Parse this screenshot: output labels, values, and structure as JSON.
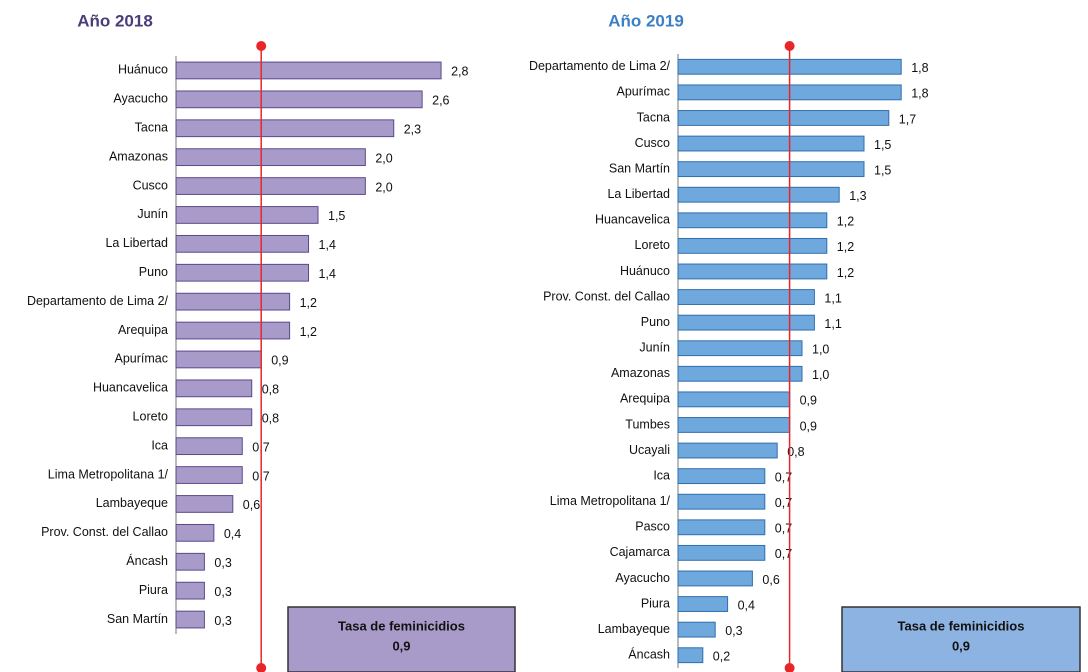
{
  "chart_data": [
    {
      "type": "hbar",
      "title": "Año 2018",
      "color": "#a99bc9",
      "edge": "#5b4a8b",
      "categories": [
        "Huánuco",
        "Ayacucho",
        "Tacna",
        "Amazonas",
        "Cusco",
        "Junín",
        "La Libertad",
        "Puno",
        "Departamento de Lima 2/",
        "Arequipa",
        "Apurímac",
        "Huancavelica",
        "Loreto",
        "Ica",
        "Lima Metropolitana 1/",
        "Lambayeque",
        "Prov. Const. del Callao",
        "Áncash",
        "Piura",
        "San Martín"
      ],
      "values": [
        2.8,
        2.6,
        2.3,
        2.0,
        2.0,
        1.5,
        1.4,
        1.4,
        1.2,
        1.2,
        0.9,
        0.8,
        0.8,
        0.7,
        0.7,
        0.6,
        0.4,
        0.3,
        0.3,
        0.3
      ],
      "value_labels": [
        "2,8",
        "2,6",
        "2,3",
        "2,0",
        "2,0",
        "1,5",
        "1,4",
        "1,4",
        "1,2",
        "1,2",
        "0,9",
        "0,8",
        "0,8",
        "0,7",
        "0,7",
        "0,6",
        "0,4",
        "0,3",
        "0,3",
        "0,3"
      ],
      "xlim": [
        0,
        3
      ],
      "reference_line": {
        "value": 0.9,
        "label": "Tasa de feminicidios",
        "value_label": "0,9",
        "color": "#e8262a",
        "box_color": "#a99bc9"
      }
    },
    {
      "type": "hbar",
      "title": "Año 2019",
      "color": "#6fa8dc",
      "edge": "#2f6fb0",
      "categories": [
        "Departamento de Lima 2/",
        "Apurímac",
        "Tacna",
        "Cusco",
        "San Martín",
        "La Libertad",
        "Huancavelica",
        "Loreto",
        "Huánuco",
        "Prov. Const. del Callao",
        "Puno",
        "Junín",
        "Amazonas",
        "Arequipa",
        "Tumbes",
        "Ucayali",
        "Ica",
        "Lima Metropolitana 1/",
        "Pasco",
        "Cajamarca",
        "Ayacucho",
        "Piura",
        "Lambayeque",
        "Áncash"
      ],
      "values": [
        1.8,
        1.8,
        1.7,
        1.5,
        1.5,
        1.3,
        1.2,
        1.2,
        1.2,
        1.1,
        1.1,
        1.0,
        1.0,
        0.9,
        0.9,
        0.8,
        0.7,
        0.7,
        0.7,
        0.7,
        0.6,
        0.4,
        0.3,
        0.2
      ],
      "value_labels": [
        "1,8",
        "1,8",
        "1,7",
        "1,5",
        "1,5",
        "1,3",
        "1,2",
        "1,2",
        "1,2",
        "1,1",
        "1,1",
        "1,0",
        "1,0",
        "0,9",
        "0,9",
        "0,8",
        "0,7",
        "0,7",
        "0,7",
        "0,7",
        "0,6",
        "0,4",
        "0,3",
        "0,2"
      ],
      "xlim": [
        0,
        2
      ],
      "reference_line": {
        "value": 0.9,
        "label": "Tasa de feminicidios",
        "value_label": "0,9",
        "color": "#e8262a",
        "box_color": "#8db3e2"
      }
    }
  ]
}
